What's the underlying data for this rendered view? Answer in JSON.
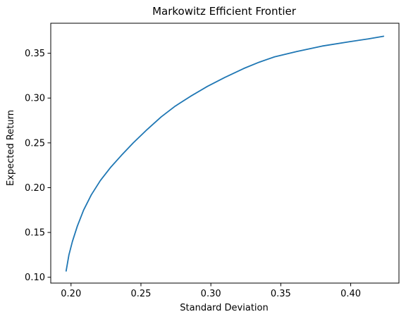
{
  "chart_data": {
    "type": "line",
    "title": "Markowitz Efficient Frontier",
    "xlabel": "Standard Deviation",
    "ylabel": "Expected Return",
    "xlim": [
      0.1855,
      0.4345
    ],
    "ylim": [
      0.0935,
      0.3835
    ],
    "xticks": [
      0.2,
      0.25,
      0.3,
      0.35,
      0.4
    ],
    "xtick_labels": [
      "0.20",
      "0.25",
      "0.30",
      "0.35",
      "0.40"
    ],
    "yticks": [
      0.1,
      0.15,
      0.2,
      0.25,
      0.3,
      0.35
    ],
    "ytick_labels": [
      "0.10",
      "0.15",
      "0.20",
      "0.25",
      "0.30",
      "0.35"
    ],
    "grid": false,
    "legend": "none",
    "color": "#1f77b4",
    "series": [
      {
        "x": [
          0.1965,
          0.1985,
          0.201,
          0.2045,
          0.209,
          0.2145,
          0.221,
          0.2285,
          0.236,
          0.2445,
          0.2545,
          0.2645,
          0.2745,
          0.2855,
          0.2975,
          0.31,
          0.3235,
          0.3345,
          0.3455,
          0.3615,
          0.3795,
          0.3995,
          0.4125,
          0.4235
        ],
        "y": [
          0.107,
          0.125,
          0.14,
          0.157,
          0.175,
          0.192,
          0.208,
          0.223,
          0.236,
          0.25,
          0.265,
          0.279,
          0.291,
          0.302,
          0.313,
          0.323,
          0.333,
          0.34,
          0.346,
          0.352,
          0.358,
          0.363,
          0.366,
          0.369
        ]
      }
    ]
  }
}
